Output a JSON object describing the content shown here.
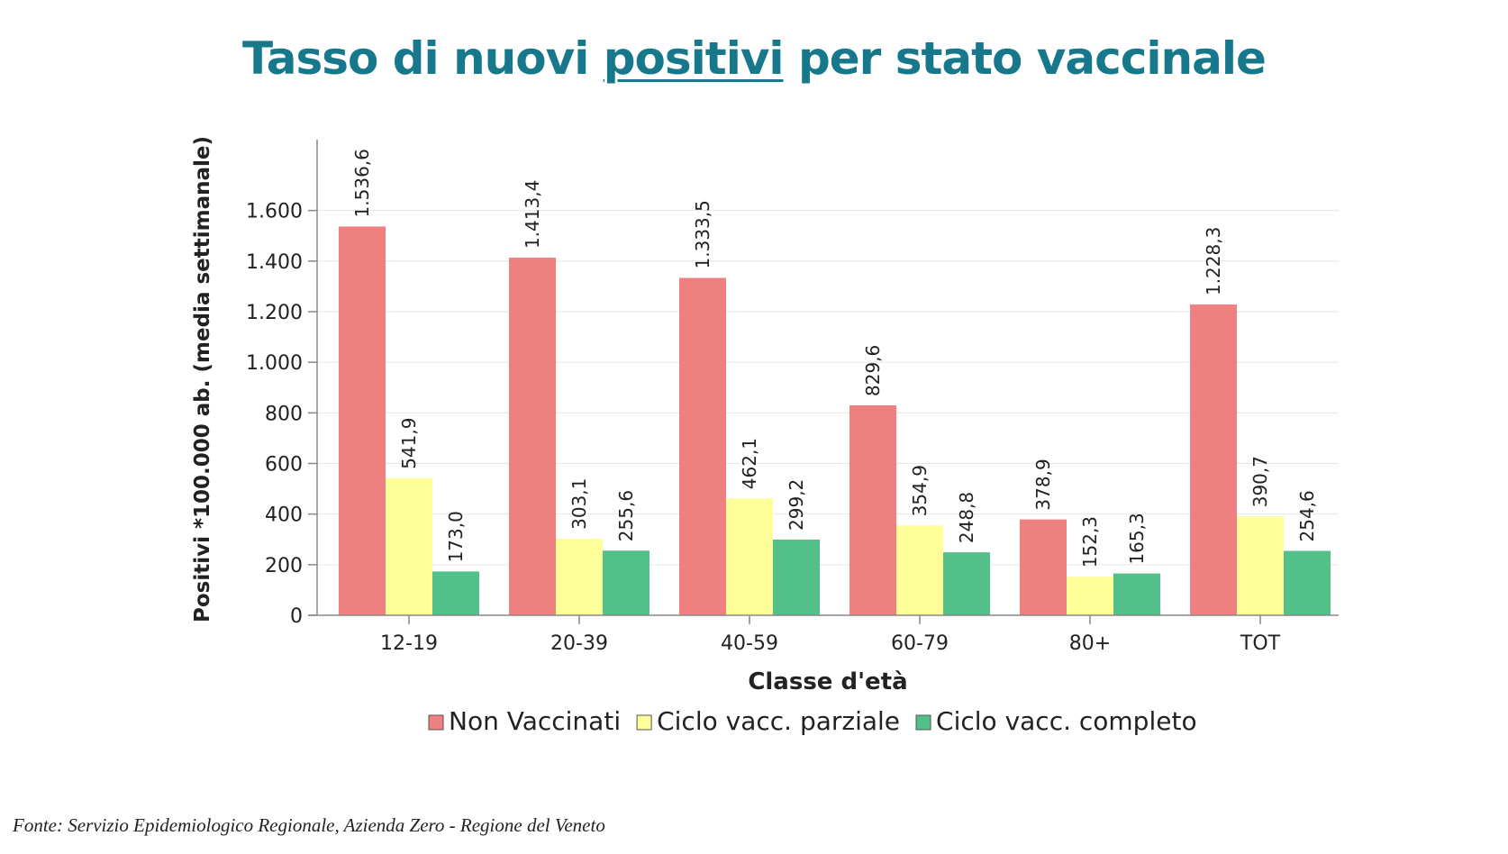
{
  "title": {
    "before": "Tasso di nuovi ",
    "underlined": "positivi",
    "after": " per stato vaccinale"
  },
  "source": "Fonte: Servizio Epidemiologico Regionale, Azienda Zero - Regione del Veneto",
  "chart_data": {
    "type": "bar",
    "xlabel": "Classe d'età",
    "ylabel": "Positivi *100.000 ab. (media settimanale)",
    "categories": [
      "12-19",
      "20-39",
      "40-59",
      "60-79",
      "80+",
      "TOT"
    ],
    "series": [
      {
        "name": "Non Vaccinati",
        "color": "#ee8080",
        "values": [
          1536.6,
          1413.4,
          1333.5,
          829.6,
          378.9,
          1228.3
        ],
        "labels": [
          "1.536,6",
          "1.413,4",
          "1.333,5",
          "829,6",
          "378,9",
          "1.228,3"
        ]
      },
      {
        "name": "Ciclo vacc. parziale",
        "color": "#ffff99",
        "values": [
          541.9,
          303.1,
          462.1,
          354.9,
          152.3,
          390.7
        ],
        "labels": [
          "541,9",
          "303,1",
          "462,1",
          "354,9",
          "152,3",
          "390,7"
        ]
      },
      {
        "name": "Ciclo vacc. completo",
        "color": "#52c088",
        "values": [
          173.0,
          255.6,
          299.2,
          248.8,
          165.3,
          254.6
        ],
        "labels": [
          "173,0",
          "255,6",
          "299,2",
          "248,8",
          "165,3",
          "254,6"
        ]
      }
    ],
    "yticks": [
      0,
      200,
      400,
      600,
      800,
      1000,
      1200,
      1400,
      1600
    ],
    "ytick_labels": [
      "0",
      "200",
      "400",
      "600",
      "800",
      "1.000",
      "1.200",
      "1.400",
      "1.600"
    ],
    "ylim": [
      0,
      1880
    ],
    "grid": true,
    "legend": "bottom"
  }
}
